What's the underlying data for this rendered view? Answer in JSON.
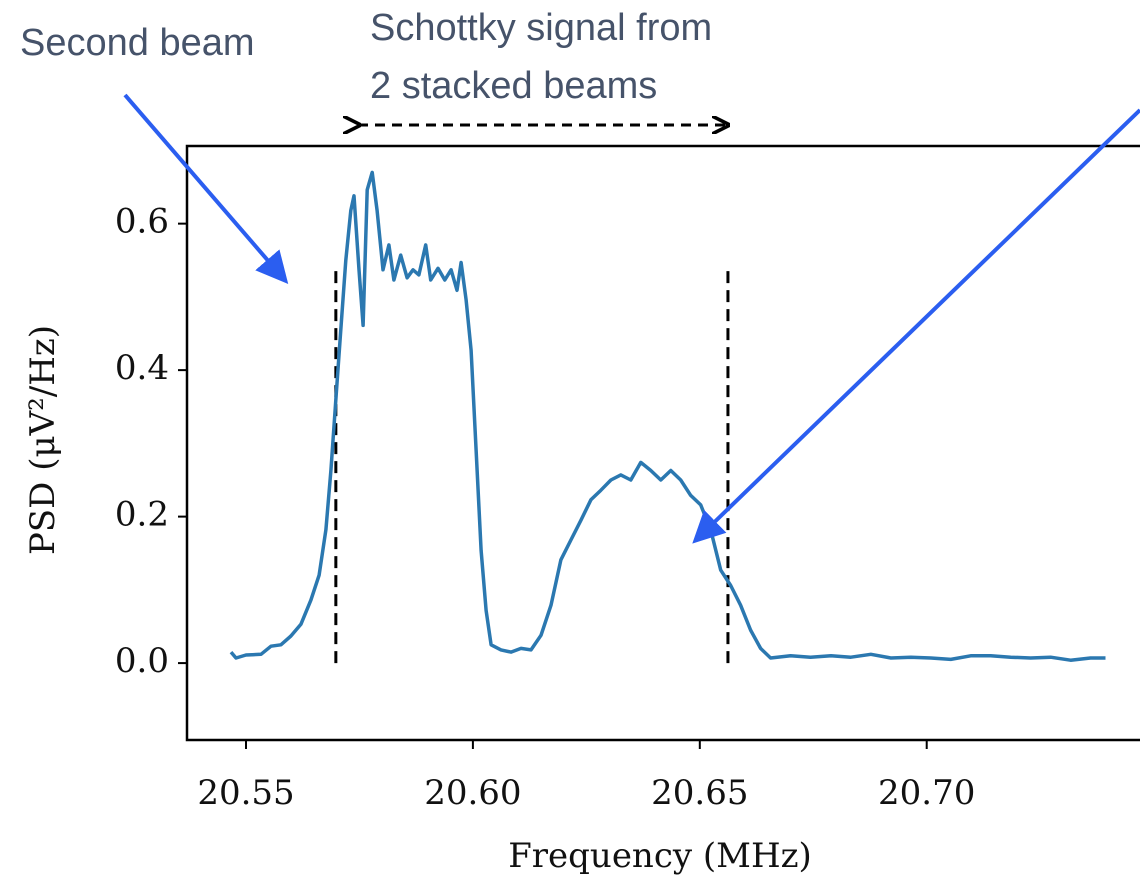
{
  "chart_data": {
    "type": "line",
    "xlabel": "Frequency (MHz)",
    "ylabel": "PSD (μV²/Hz)",
    "annotations": [
      "Second beam",
      "Schottky signal from",
      "2 stacked beams"
    ],
    "color": "#2b78b0",
    "xlim": [
      20.537,
      20.747
    ],
    "ylim": [
      -0.105,
      0.706
    ],
    "xticks": [
      20.55,
      {
        "value": 20.6,
        "label": "20.60"
      },
      20.65,
      {
        "value": 20.7,
        "label": "20.70"
      }
    ],
    "yticks": [
      {
        "value": 0,
        "label": "0.0"
      },
      0.2,
      0.4,
      0.6
    ],
    "markers": [
      20.5698,
      20.6562
    ],
    "marker_top": 0.54,
    "x": [
      20.5467,
      20.5478,
      20.55,
      20.5533,
      20.5555,
      20.5577,
      20.5599,
      20.5621,
      20.5643,
      20.5661,
      20.5676,
      20.5687,
      20.5698,
      20.5709,
      20.572,
      20.5731,
      20.5738,
      20.5749,
      20.5758,
      20.5767,
      20.5778,
      20.5789,
      20.5802,
      20.5815,
      20.5826,
      20.5841,
      20.5855,
      20.5868,
      20.5881,
      20.5896,
      20.5907,
      20.5923,
      20.5938,
      20.5952,
      20.5965,
      20.5974,
      20.5985,
      20.5996,
      20.6007,
      20.6018,
      20.6029,
      20.604,
      20.6062,
      20.6084,
      20.6106,
      20.6128,
      20.615,
      20.6172,
      20.6194,
      20.6216,
      20.6238,
      20.626,
      20.6282,
      20.6304,
      20.6326,
      20.6348,
      20.637,
      20.6392,
      20.6414,
      20.6436,
      20.6458,
      20.648,
      20.6502,
      20.6524,
      20.6546,
      20.6568,
      20.659,
      20.6612,
      20.6634,
      20.6656,
      20.67,
      20.6744,
      20.6789,
      20.6833,
      20.6877,
      20.6921,
      20.6965,
      20.7009,
      20.7053,
      20.7097,
      20.7141,
      20.7185,
      20.7229,
      20.7273,
      20.7317,
      20.7361,
      20.7394
    ],
    "values": [
      0.015,
      0.007,
      0.011,
      0.012,
      0.023,
      0.025,
      0.037,
      0.053,
      0.086,
      0.12,
      0.182,
      0.263,
      0.359,
      0.455,
      0.55,
      0.618,
      0.638,
      0.537,
      0.461,
      0.646,
      0.67,
      0.618,
      0.537,
      0.571,
      0.523,
      0.557,
      0.526,
      0.537,
      0.53,
      0.571,
      0.523,
      0.539,
      0.523,
      0.537,
      0.509,
      0.547,
      0.496,
      0.427,
      0.291,
      0.154,
      0.072,
      0.025,
      0.018,
      0.015,
      0.02,
      0.018,
      0.038,
      0.079,
      0.141,
      0.168,
      0.195,
      0.223,
      0.236,
      0.25,
      0.257,
      0.25,
      0.274,
      0.263,
      0.25,
      0.263,
      0.25,
      0.229,
      0.216,
      0.182,
      0.127,
      0.106,
      0.079,
      0.045,
      0.02,
      0.007,
      0.01,
      0.008,
      0.01,
      0.008,
      0.012,
      0.007,
      0.008,
      0.007,
      0.005,
      0.01,
      0.01,
      0.008,
      0.007,
      0.008,
      0.004,
      0.007,
      0.007
    ]
  }
}
